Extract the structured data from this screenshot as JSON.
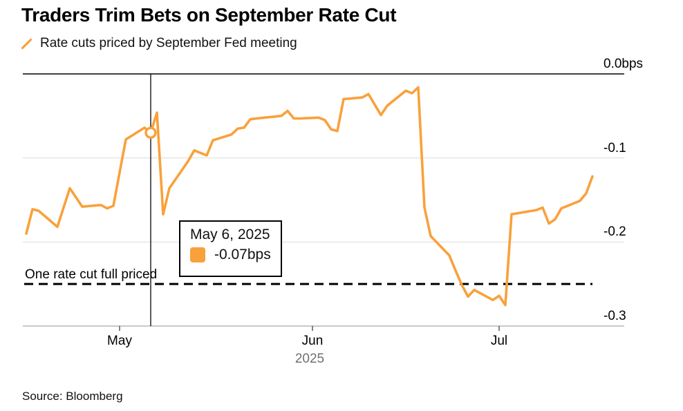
{
  "title": "Traders Trim Bets on September Rate Cut",
  "legend": {
    "label": "Rate cuts priced by September Fed meeting"
  },
  "source": "Source: Bloomberg",
  "colors": {
    "accent": "#F9A13A",
    "grid": "#DBDBDB",
    "axis_top": "#000000",
    "axis_bottom": "#C0C0C0",
    "tick": "#333333",
    "muted_text": "#707070",
    "crosshair": "#000000",
    "reference": "#000000"
  },
  "tooltip": {
    "date_label": "May 6, 2025",
    "value_label": "-0.07bps"
  },
  "chart_data": {
    "type": "line",
    "title": "Traders Trim Bets on September Rate Cut",
    "ylabel": "",
    "xlabel": "",
    "ylim": [
      -0.3,
      0.0
    ],
    "x_range": [
      "2025-04-16",
      "2025-07-16"
    ],
    "grid": "horizontal",
    "legend_position": "top-left",
    "yticks": [
      {
        "label": "0.0bps",
        "value": 0.0
      },
      {
        "label": "-0.1",
        "value": -0.1
      },
      {
        "label": "-0.2",
        "value": -0.2
      },
      {
        "label": "-0.3",
        "value": -0.3
      }
    ],
    "xticks": [
      {
        "label": "May",
        "date": "2025-05-01"
      },
      {
        "label": "Jun",
        "date": "2025-06-01"
      },
      {
        "label": "Jul",
        "date": "2025-07-01"
      }
    ],
    "x_secondary_label": "2025",
    "reference_line": {
      "value": -0.25,
      "style": "dashed",
      "label": "One rate cut full priced"
    },
    "marker": {
      "date": "2025-05-06",
      "value": -0.07,
      "label": "-0.07bps"
    },
    "series": [
      {
        "name": "Rate cuts priced by September Fed meeting",
        "color": "#F9A13A",
        "points": [
          [
            "2025-04-16",
            -0.19
          ],
          [
            "2025-04-17",
            -0.161
          ],
          [
            "2025-04-18",
            -0.163
          ],
          [
            "2025-04-21",
            -0.182
          ],
          [
            "2025-04-23",
            -0.136
          ],
          [
            "2025-04-25",
            -0.158
          ],
          [
            "2025-04-28",
            -0.156
          ],
          [
            "2025-04-29",
            -0.16
          ],
          [
            "2025-04-30",
            -0.157
          ],
          [
            "2025-05-02",
            -0.078
          ],
          [
            "2025-05-05",
            -0.064
          ],
          [
            "2025-05-06",
            -0.07
          ],
          [
            "2025-05-07",
            -0.046
          ],
          [
            "2025-05-08",
            -0.167
          ],
          [
            "2025-05-09",
            -0.136
          ],
          [
            "2025-05-12",
            -0.104
          ],
          [
            "2025-05-13",
            -0.091
          ],
          [
            "2025-05-15",
            -0.097
          ],
          [
            "2025-05-16",
            -0.079
          ],
          [
            "2025-05-19",
            -0.072
          ],
          [
            "2025-05-20",
            -0.065
          ],
          [
            "2025-05-21",
            -0.064
          ],
          [
            "2025-05-22",
            -0.054
          ],
          [
            "2025-05-23",
            -0.053
          ],
          [
            "2025-05-27",
            -0.05
          ],
          [
            "2025-05-28",
            -0.044
          ],
          [
            "2025-05-29",
            -0.053
          ],
          [
            "2025-05-30",
            -0.053
          ],
          [
            "2025-06-02",
            -0.052
          ],
          [
            "2025-06-03",
            -0.055
          ],
          [
            "2025-06-04",
            -0.066
          ],
          [
            "2025-06-05",
            -0.068
          ],
          [
            "2025-06-06",
            -0.03
          ],
          [
            "2025-06-09",
            -0.028
          ],
          [
            "2025-06-10",
            -0.024
          ],
          [
            "2025-06-12",
            -0.049
          ],
          [
            "2025-06-13",
            -0.038
          ],
          [
            "2025-06-16",
            -0.02
          ],
          [
            "2025-06-17",
            -0.023
          ],
          [
            "2025-06-18",
            -0.016
          ],
          [
            "2025-06-19",
            -0.159
          ],
          [
            "2025-06-20",
            -0.193
          ],
          [
            "2025-06-23",
            -0.216
          ],
          [
            "2025-06-24",
            -0.234
          ],
          [
            "2025-06-25",
            -0.251
          ],
          [
            "2025-06-26",
            -0.265
          ],
          [
            "2025-06-27",
            -0.257
          ],
          [
            "2025-06-30",
            -0.269
          ],
          [
            "2025-07-01",
            -0.264
          ],
          [
            "2025-07-02",
            -0.275
          ],
          [
            "2025-07-03",
            -0.167
          ],
          [
            "2025-07-07",
            -0.162
          ],
          [
            "2025-07-08",
            -0.159
          ],
          [
            "2025-07-09",
            -0.178
          ],
          [
            "2025-07-10",
            -0.173
          ],
          [
            "2025-07-11",
            -0.16
          ],
          [
            "2025-07-14",
            -0.151
          ],
          [
            "2025-07-15",
            -0.142
          ],
          [
            "2025-07-16",
            -0.122
          ]
        ]
      }
    ]
  }
}
